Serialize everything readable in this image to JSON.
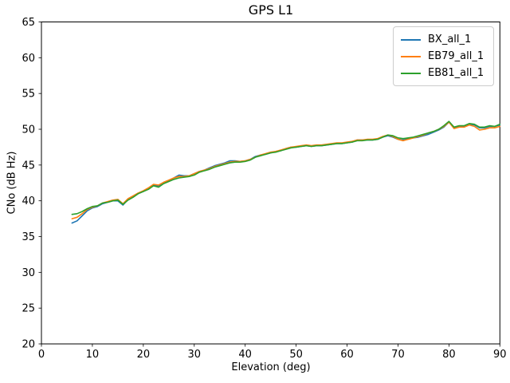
{
  "chart_data": {
    "type": "line",
    "title": "GPS L1",
    "xlabel": "Elevation (deg)",
    "ylabel": "CNo (dB Hz)",
    "xlim": [
      0,
      90
    ],
    "ylim": [
      20,
      65
    ],
    "xticks": [
      0,
      10,
      20,
      30,
      40,
      50,
      60,
      70,
      80,
      90
    ],
    "yticks": [
      20,
      25,
      30,
      35,
      40,
      45,
      50,
      55,
      60,
      65
    ],
    "grid": false,
    "legend_position": "upper right",
    "x": [
      6,
      7,
      8,
      9,
      10,
      11,
      12,
      13,
      14,
      15,
      16,
      17,
      18,
      19,
      20,
      21,
      22,
      23,
      24,
      25,
      26,
      27,
      28,
      29,
      30,
      31,
      32,
      33,
      34,
      35,
      36,
      37,
      38,
      39,
      40,
      41,
      42,
      43,
      44,
      45,
      46,
      47,
      48,
      49,
      50,
      51,
      52,
      53,
      54,
      55,
      56,
      57,
      58,
      59,
      60,
      61,
      62,
      63,
      64,
      65,
      66,
      67,
      68,
      69,
      70,
      71,
      72,
      73,
      74,
      75,
      76,
      77,
      78,
      79,
      80,
      81,
      82,
      83,
      84,
      85,
      86,
      87,
      88,
      89,
      90
    ],
    "series": [
      {
        "name": "BX_all_1",
        "color": "#1f77b4",
        "values": [
          36.9,
          37.2,
          37.9,
          38.6,
          39.0,
          39.2,
          39.6,
          39.8,
          40.0,
          40.0,
          39.4,
          40.2,
          40.6,
          41.0,
          41.3,
          41.7,
          42.2,
          42.1,
          42.5,
          42.8,
          43.2,
          43.6,
          43.5,
          43.5,
          43.8,
          44.1,
          44.3,
          44.6,
          44.9,
          45.1,
          45.3,
          45.6,
          45.6,
          45.5,
          45.6,
          45.8,
          46.2,
          46.4,
          46.5,
          46.7,
          46.9,
          47.0,
          47.3,
          47.5,
          47.5,
          47.6,
          47.7,
          47.6,
          47.7,
          47.7,
          47.8,
          47.9,
          48.0,
          48.0,
          48.1,
          48.2,
          48.5,
          48.5,
          48.5,
          48.5,
          48.6,
          48.9,
          49.1,
          48.9,
          48.6,
          48.5,
          48.7,
          48.8,
          48.9,
          49.1,
          49.3,
          49.6,
          49.9,
          50.3,
          51.0,
          50.2,
          50.4,
          50.4,
          50.7,
          50.6,
          50.2,
          50.2,
          50.4,
          50.4,
          50.6
        ]
      },
      {
        "name": "EB79_all_1",
        "color": "#ff7f0e",
        "values": [
          37.5,
          37.7,
          38.2,
          38.8,
          39.1,
          39.3,
          39.7,
          39.9,
          40.1,
          40.2,
          39.6,
          40.3,
          40.7,
          41.1,
          41.4,
          41.8,
          42.3,
          42.2,
          42.6,
          42.9,
          43.2,
          43.4,
          43.4,
          43.5,
          43.8,
          44.1,
          44.3,
          44.5,
          44.8,
          45.0,
          45.2,
          45.4,
          45.5,
          45.5,
          45.6,
          45.8,
          46.1,
          46.4,
          46.6,
          46.8,
          46.9,
          47.1,
          47.3,
          47.5,
          47.6,
          47.7,
          47.8,
          47.7,
          47.8,
          47.8,
          47.9,
          48.0,
          48.1,
          48.1,
          48.2,
          48.3,
          48.5,
          48.5,
          48.6,
          48.6,
          48.7,
          49.0,
          49.2,
          49.0,
          48.6,
          48.4,
          48.6,
          48.8,
          49.0,
          49.2,
          49.5,
          49.7,
          50.0,
          50.4,
          51.0,
          50.1,
          50.3,
          50.3,
          50.6,
          50.4,
          49.9,
          50.0,
          50.2,
          50.2,
          50.4
        ]
      },
      {
        "name": "EB81_all_1",
        "color": "#2ca02c",
        "values": [
          38.1,
          38.2,
          38.5,
          38.9,
          39.2,
          39.3,
          39.7,
          39.8,
          40.0,
          40.1,
          39.5,
          40.1,
          40.5,
          41.0,
          41.3,
          41.6,
          42.1,
          41.9,
          42.4,
          42.7,
          43.0,
          43.2,
          43.3,
          43.4,
          43.6,
          44.0,
          44.2,
          44.4,
          44.7,
          44.9,
          45.1,
          45.3,
          45.4,
          45.4,
          45.5,
          45.7,
          46.1,
          46.3,
          46.5,
          46.7,
          46.8,
          47.0,
          47.2,
          47.4,
          47.5,
          47.6,
          47.7,
          47.6,
          47.7,
          47.7,
          47.8,
          47.9,
          48.0,
          48.0,
          48.1,
          48.2,
          48.4,
          48.4,
          48.5,
          48.5,
          48.6,
          48.9,
          49.2,
          49.1,
          48.8,
          48.7,
          48.8,
          48.9,
          49.1,
          49.3,
          49.5,
          49.7,
          50.0,
          50.5,
          51.1,
          50.3,
          50.5,
          50.5,
          50.8,
          50.7,
          50.3,
          50.3,
          50.5,
          50.4,
          50.7
        ]
      }
    ]
  }
}
